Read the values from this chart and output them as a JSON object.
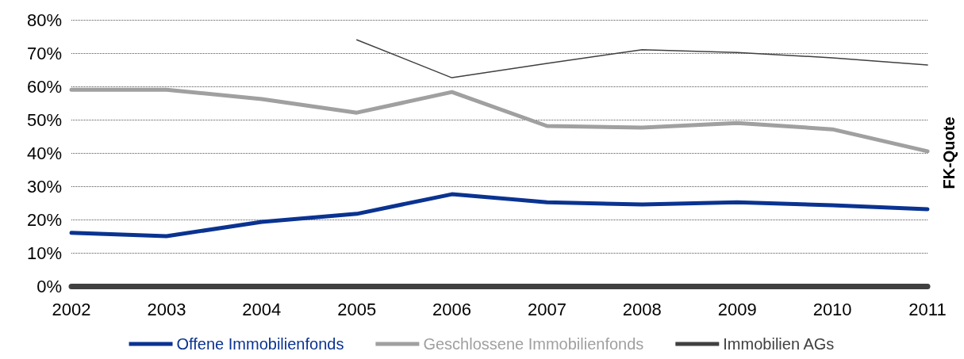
{
  "chart_data": {
    "type": "line",
    "ylabel": "FK-Quote",
    "categories": [
      "2002",
      "2003",
      "2004",
      "2005",
      "2006",
      "2007",
      "2008",
      "2009",
      "2010",
      "2011"
    ],
    "series": [
      {
        "name": "Offene Immobilienfonds",
        "color": "#0a3391",
        "values": [
          16,
          15,
          19.3,
          21.7,
          27.6,
          25.2,
          24.5,
          25.2,
          24.3,
          23.1
        ]
      },
      {
        "name": "Geschlossene Immobilienfonds",
        "color": "#a0a0a0",
        "values": [
          59,
          59,
          56.2,
          52.1,
          58.3,
          48.1,
          47.6,
          49,
          47.1,
          40.5
        ]
      },
      {
        "name": "Immobilien AGs",
        "color": "#404040",
        "values": [
          null,
          null,
          null,
          74,
          62.6,
          66.9,
          71,
          70.2,
          68.6,
          66.4
        ]
      }
    ],
    "ylim": [
      0,
      80
    ],
    "yticks": [
      {
        "value": 0,
        "label": "0%"
      },
      {
        "value": 10,
        "label": "10%"
      },
      {
        "value": 20,
        "label": "20%"
      },
      {
        "value": 30,
        "label": "30%"
      },
      {
        "value": 40,
        "label": "40%"
      },
      {
        "value": 50,
        "label": "50%"
      },
      {
        "value": 60,
        "label": "60%"
      },
      {
        "value": 70,
        "label": "70%"
      },
      {
        "value": 80,
        "label": "80%"
      }
    ],
    "grid": "y",
    "legend": "bottom",
    "marker": "none",
    "line_style": "solid"
  }
}
